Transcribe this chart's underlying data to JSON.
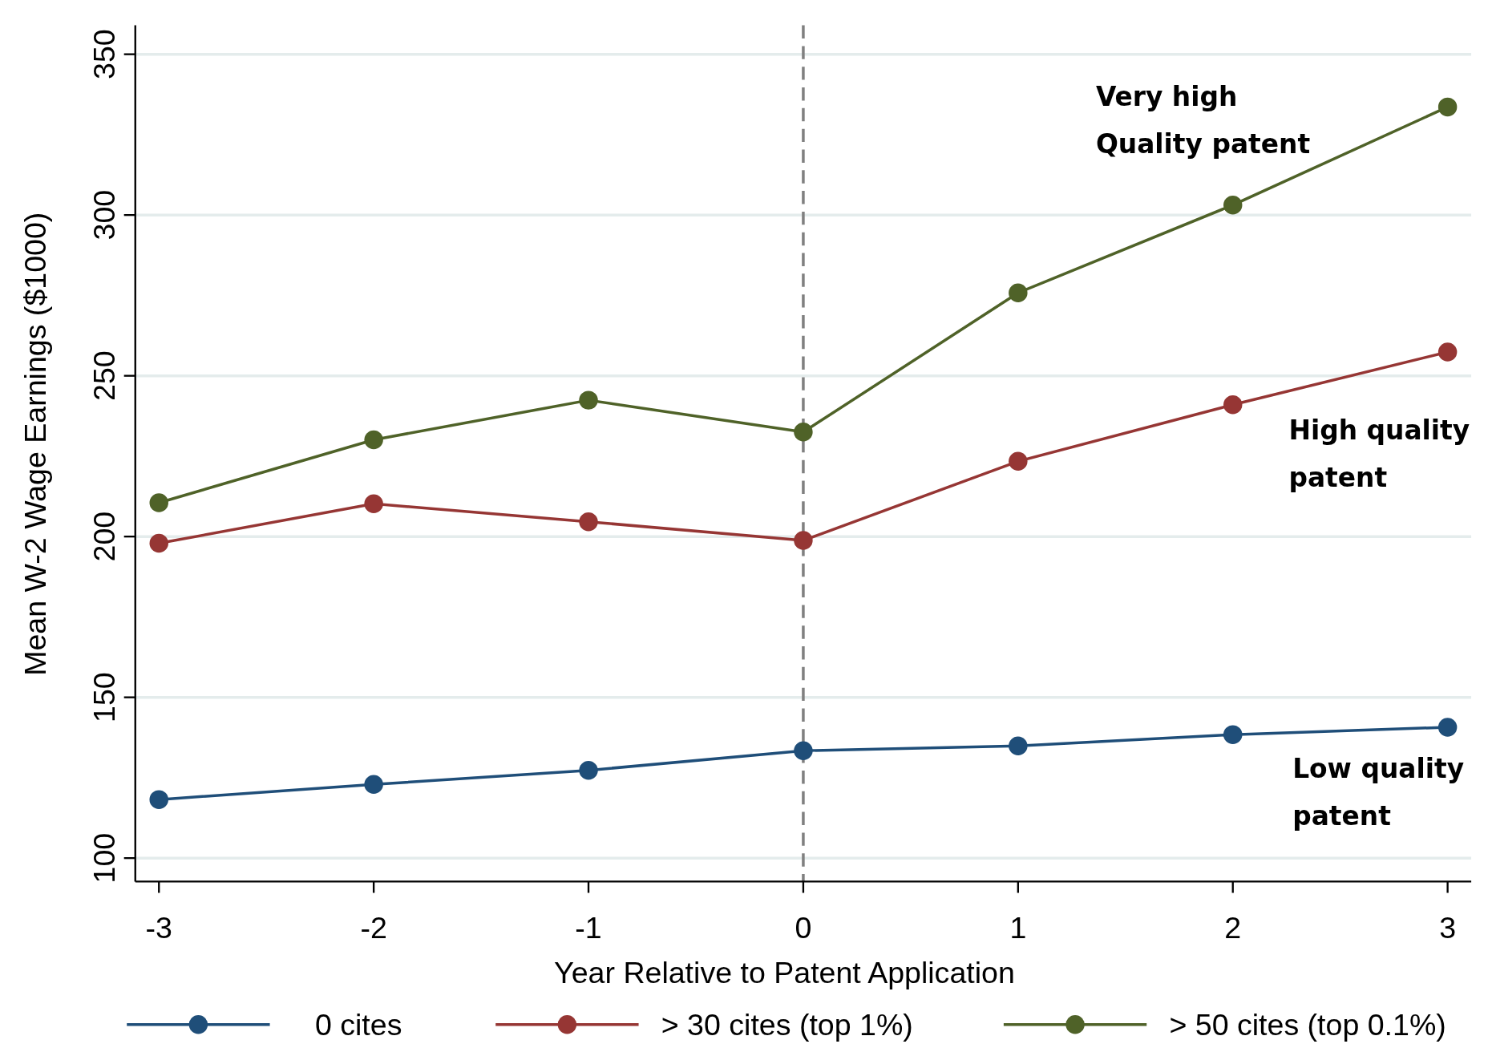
{
  "chart_data": {
    "type": "line",
    "xlabel": "Year Relative to Patent Application",
    "ylabel": "Mean W-2 Wage Earnings ($1000)",
    "x": [
      -3,
      -2,
      -1,
      0,
      1,
      2,
      3
    ],
    "xlim": [
      -3.11,
      3.11
    ],
    "xticks": [
      -3,
      -2,
      -1,
      0,
      1,
      2,
      3
    ],
    "ylim": [
      92.7,
      359
    ],
    "yticks": [
      100,
      150,
      200,
      250,
      300,
      350
    ],
    "grid": "y",
    "marker": "circle",
    "line_style": "solid",
    "legend": "bottom",
    "series": [
      {
        "name": "0 cites",
        "color": "#1f4e79",
        "values": [
          118.2,
          122.9,
          127.3,
          133.4,
          134.9,
          138.4,
          140.7
        ]
      },
      {
        "name": "> 30 cites (top 1%)",
        "color": "#963634",
        "values": [
          197.9,
          210.2,
          204.6,
          198.8,
          223.4,
          241.0,
          257.4
        ]
      },
      {
        "name": "> 50 cites (top 0.1%)",
        "color": "#4f6228",
        "values": [
          210.5,
          230.1,
          242.4,
          232.5,
          275.8,
          303.1,
          333.6
        ]
      }
    ],
    "ref_lines": [
      {
        "axis": "x",
        "value": 0,
        "color": "#808080",
        "line_style": "dashed"
      }
    ],
    "annotations": [
      "Very high\nQuality patent",
      "High quality\npatent",
      "Low quality\npatent"
    ]
  }
}
